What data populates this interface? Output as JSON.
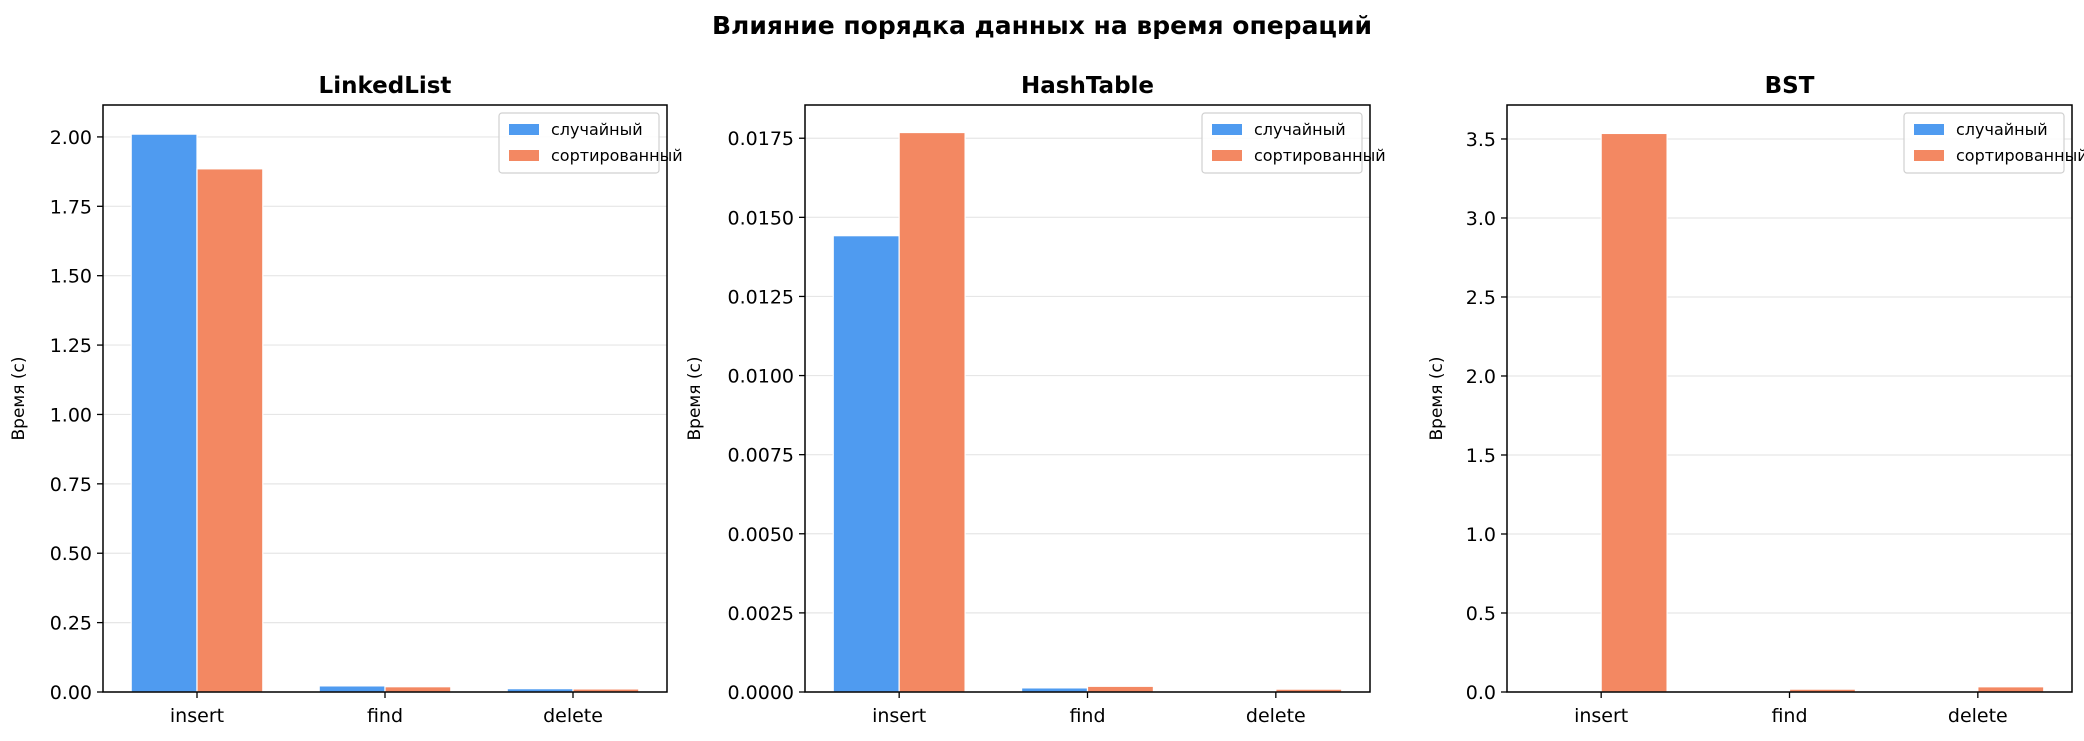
{
  "figure": {
    "title": "Влияние порядка данных на время операций"
  },
  "colors": {
    "random": "#4f9bf0",
    "sorted": "#f38862",
    "grid": "#e6e6e6",
    "axis": "#000000"
  },
  "chart_data": [
    {
      "type": "bar",
      "title": "LinkedList",
      "ylabel": "Время (с)",
      "xlabel": "",
      "categories": [
        "insert",
        "find",
        "delete"
      ],
      "series": [
        {
          "name": "случайный",
          "values": [
            2.01,
            0.022,
            0.012
          ]
        },
        {
          "name": "сортированный",
          "values": [
            1.885,
            0.019,
            0.011
          ]
        }
      ],
      "ylim": [
        0,
        2.115
      ],
      "yticks": [
        0.0,
        0.25,
        0.5,
        0.75,
        1.0,
        1.25,
        1.5,
        1.75,
        2.0
      ],
      "ytick_labels": [
        "0.00",
        "0.25",
        "0.50",
        "0.75",
        "1.00",
        "1.25",
        "1.50",
        "1.75",
        "2.00"
      ],
      "grid": "y",
      "legend": "upper right"
    },
    {
      "type": "bar",
      "title": "HashTable",
      "ylabel": "Время (с)",
      "xlabel": "",
      "categories": [
        "insert",
        "find",
        "delete"
      ],
      "series": [
        {
          "name": "случайный",
          "values": [
            0.01442,
            0.00013,
            2e-05
          ]
        },
        {
          "name": "сортированный",
          "values": [
            0.01768,
            0.00018,
            9e-05
          ]
        }
      ],
      "ylim": [
        0,
        0.01855
      ],
      "yticks": [
        0.0,
        0.0025,
        0.005,
        0.0075,
        0.01,
        0.0125,
        0.015,
        0.0175
      ],
      "ytick_labels": [
        "0.0000",
        "0.0025",
        "0.0050",
        "0.0075",
        "0.0100",
        "0.0125",
        "0.0150",
        "0.0175"
      ],
      "grid": "y",
      "legend": "upper right"
    },
    {
      "type": "bar",
      "title": "BST",
      "ylabel": "Время (с)",
      "xlabel": "",
      "categories": [
        "insert",
        "find",
        "delete"
      ],
      "series": [
        {
          "name": "случайный",
          "values": [
            0.003,
            0.0005,
            0.0005
          ]
        },
        {
          "name": "сортированный",
          "values": [
            3.535,
            0.018,
            0.033
          ]
        }
      ],
      "ylim": [
        0,
        3.715
      ],
      "yticks": [
        0.0,
        0.5,
        1.0,
        1.5,
        2.0,
        2.5,
        3.0,
        3.5
      ],
      "ytick_labels": [
        "0.0",
        "0.5",
        "1.0",
        "1.5",
        "2.0",
        "2.5",
        "3.0",
        "3.5"
      ],
      "grid": "y",
      "legend": "upper right"
    }
  ]
}
